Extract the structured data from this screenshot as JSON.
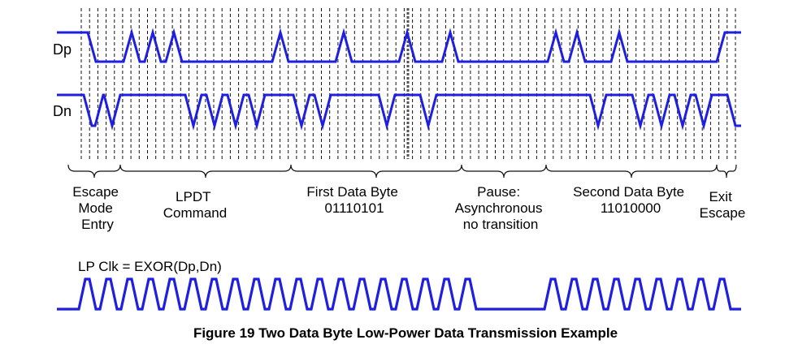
{
  "signals": {
    "dp_label": "Dp",
    "dn_label": "Dn",
    "clock_label": "LP Clk = EXOR(Dp,Dn)"
  },
  "phases": [
    {
      "lines": [
        "Escape",
        "Mode",
        "Entry"
      ]
    },
    {
      "lines": [
        "LPDT",
        "Command"
      ]
    },
    {
      "lines": [
        "First Data Byte",
        "01110101"
      ]
    },
    {
      "lines": [
        "Pause:",
        "Asynchronous",
        "no transition"
      ]
    },
    {
      "lines": [
        "Second Data Byte",
        "11010000"
      ]
    },
    {
      "lines": [
        "Exit",
        "Escape"
      ]
    }
  ],
  "caption": "Figure 19 Two Data Byte Low-Power Data Transmission Example",
  "colors": {
    "signal": "#1f1fe0",
    "grid": "#111111",
    "text": "#000000"
  }
}
